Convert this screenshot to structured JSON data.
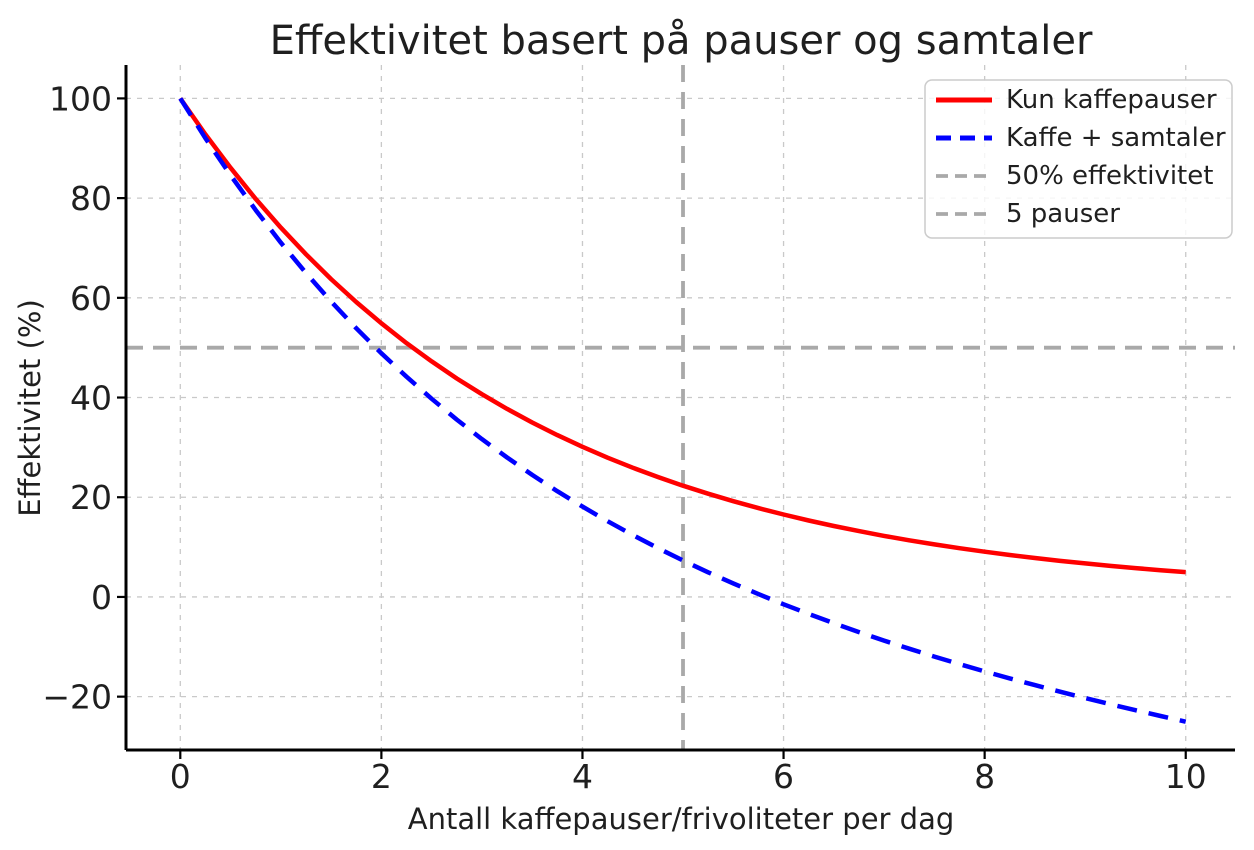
{
  "chart_data": {
    "type": "line",
    "title": "Effektivitet basert på pauser og samtaler",
    "xlabel": "Antall kaffepauser/frivoliteter per dag",
    "ylabel": "Effektivitet (%)",
    "xlim": [
      -0.54,
      10.49
    ],
    "ylim": [
      -30.7,
      106.7
    ],
    "xticks": [
      0,
      2,
      4,
      6,
      8,
      10
    ],
    "yticks": [
      -20,
      0,
      20,
      40,
      60,
      80,
      100
    ],
    "grid": true,
    "grid_style": "dashed",
    "legend_position": "upper right",
    "x": [
      0,
      0.25,
      0.5,
      0.75,
      1,
      1.25,
      1.5,
      1.75,
      2,
      2.25,
      2.5,
      2.75,
      3,
      3.25,
      3.5,
      3.75,
      4,
      4.25,
      4.5,
      4.75,
      5,
      5.25,
      5.5,
      5.75,
      6,
      6.25,
      6.5,
      6.75,
      7,
      7.25,
      7.5,
      7.75,
      8,
      8.25,
      8.5,
      8.75,
      9,
      9.25,
      9.5,
      9.75,
      10
    ],
    "series": [
      {
        "name": "Kun kaffepauser",
        "color": "#ff0000",
        "line_style": "solid",
        "line_width": 4.5,
        "values": [
          100,
          92.77,
          86.07,
          79.85,
          74.08,
          68.73,
          63.76,
          59.16,
          54.88,
          50.92,
          47.24,
          43.82,
          40.66,
          37.72,
          34.99,
          32.47,
          30.12,
          27.94,
          25.92,
          24.05,
          22.31,
          20.7,
          19.21,
          17.82,
          16.53,
          15.34,
          14.23,
          13.2,
          12.25,
          11.36,
          10.54,
          9.78,
          9.07,
          8.42,
          7.81,
          7.24,
          6.72,
          6.23,
          5.78,
          5.37,
          4.98
        ]
      },
      {
        "name": "Kaffe + samtaler",
        "color": "#0000ff",
        "line_style": "dashed",
        "line_width": 4.5,
        "values": [
          100,
          92.02,
          84.57,
          77.6,
          71.08,
          64.98,
          59.26,
          53.91,
          48.88,
          44.17,
          39.74,
          35.57,
          31.66,
          27.97,
          24.49,
          21.22,
          18.12,
          15.19,
          12.42,
          9.8,
          7.31,
          4.95,
          2.71,
          0.57,
          -1.47,
          -3.41,
          -5.27,
          -7.05,
          -8.75,
          -10.39,
          -11.96,
          -13.47,
          -14.93,
          -16.33,
          -17.69,
          -19.01,
          -20.28,
          -21.52,
          -22.72,
          -23.88,
          -25.02
        ]
      }
    ],
    "reference_lines": [
      {
        "name": "50% effektivitet",
        "orientation": "horizontal",
        "value": 50,
        "color": "#a9a9a9",
        "line_style": "dashed",
        "line_width": 3.8
      },
      {
        "name": "5 pauser",
        "orientation": "vertical",
        "value": 5,
        "color": "#a9a9a9",
        "line_style": "dashed",
        "line_width": 3.8
      }
    ],
    "legend_entries": [
      "Kun kaffepauser",
      "Kaffe + samtaler",
      "50% effektivitet",
      "5 pauser"
    ]
  },
  "colors": {
    "grid": "#c9c9c9",
    "axis": "#000000",
    "text": "#1f1f1f",
    "legend_border": "#cccccc"
  }
}
